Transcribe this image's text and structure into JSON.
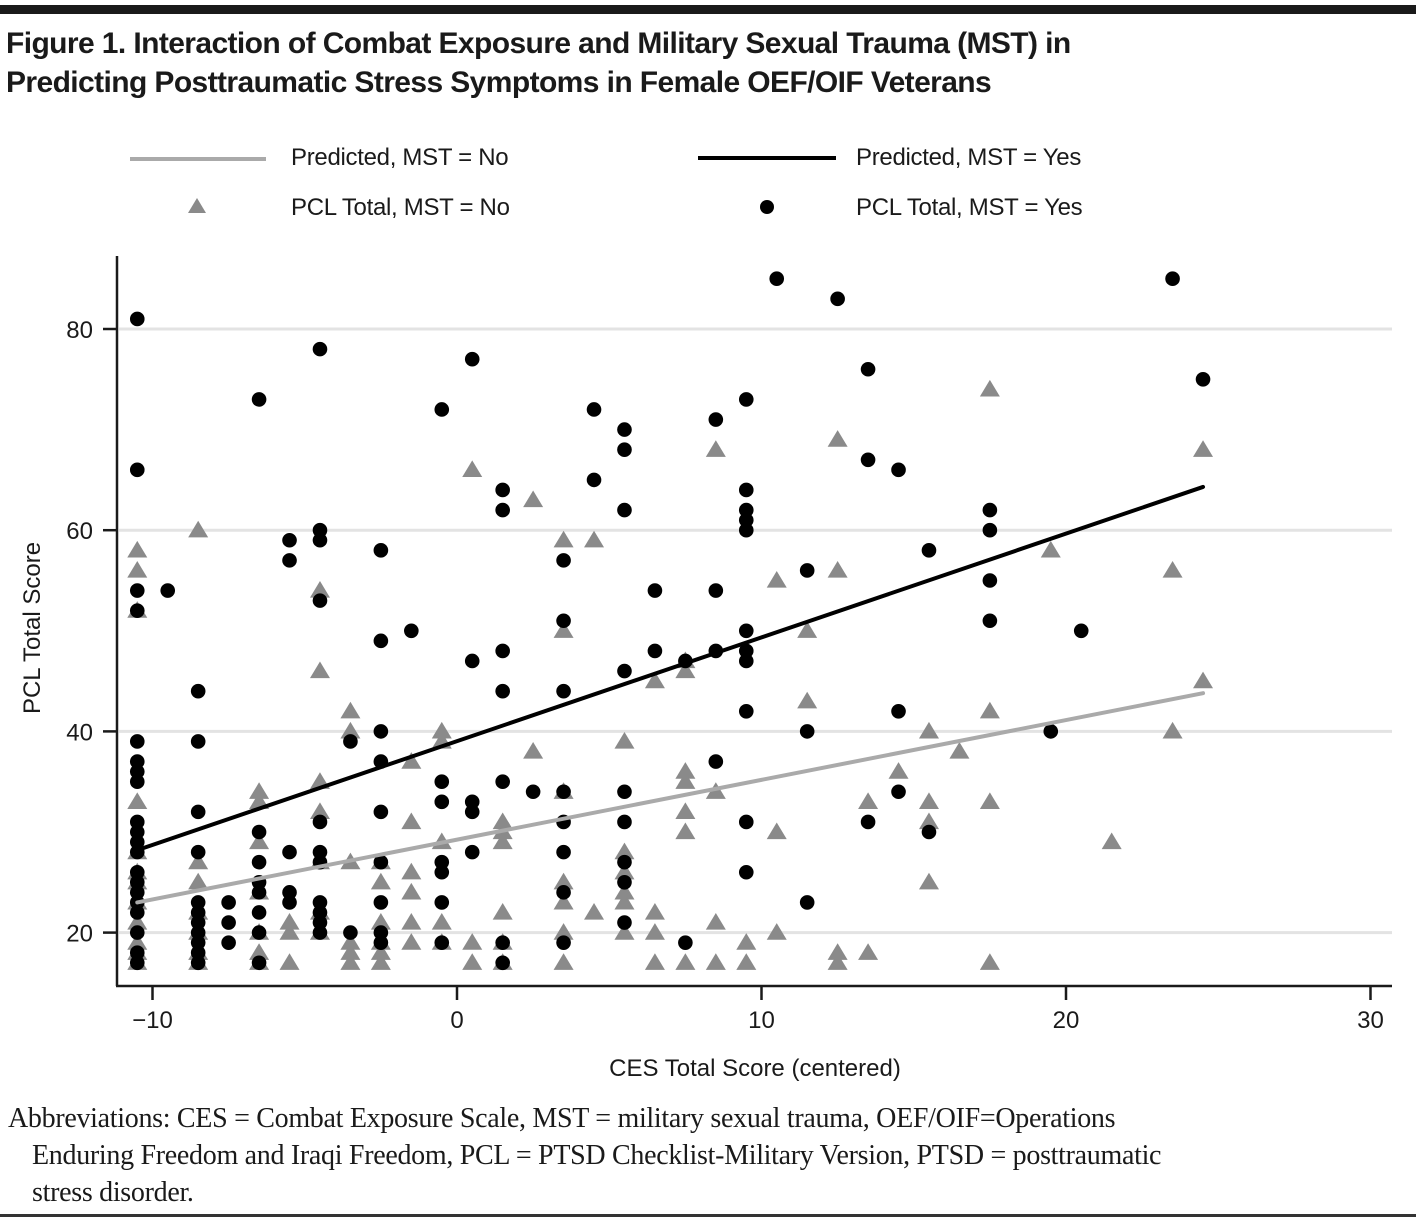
{
  "figure": {
    "title_line1": "Figure 1. Interaction of Combat Exposure and Military Sexual Trauma (MST) in",
    "title_line2": "Predicting Posttraumatic Stress Symptoms in Female OEF/OIF Veterans",
    "caption_line1": "Abbreviations: CES = Combat Exposure Scale, MST = military sexual trauma, OEF/OIF=Operations",
    "caption_line2": "Enduring Freedom and Iraqi Freedom, PCL = PTSD Checklist-Military Version, PTSD = posttraumatic",
    "caption_line3": "stress disorder."
  },
  "colors": {
    "mst_no": "#8a8a8a",
    "mst_no_line": "#aaaaaa",
    "mst_yes": "#000000",
    "grid": "#e3e3e3",
    "axis": "#1a1a1a"
  },
  "chart_data": {
    "type": "scatter",
    "title": "Interaction of Combat Exposure and Military Sexual Trauma (MST) in Predicting Posttraumatic Stress Symptoms in Female OEF/OIF Veterans",
    "xlabel": "CES Total Score (centered)",
    "ylabel": "PCL Total Score",
    "xlim": [
      -11,
      31
    ],
    "ylim": [
      15,
      87
    ],
    "xticks": [
      -10,
      0,
      10,
      20,
      30
    ],
    "xtick_labels": [
      "−10",
      "0",
      "10",
      "20",
      "30"
    ],
    "yticks": [
      20,
      40,
      60,
      80
    ],
    "ytick_labels": [
      "20",
      "40",
      "60",
      "80"
    ],
    "grid": "horizontal",
    "legend_position": "top",
    "legend": [
      {
        "label": "Predicted, MST = No",
        "kind": "line",
        "series": "predicted_no"
      },
      {
        "label": "Predicted, MST = Yes",
        "kind": "line",
        "series": "predicted_yes"
      },
      {
        "label": "PCL Total, MST = No",
        "kind": "triangle",
        "series": "observed_no"
      },
      {
        "label": "PCL Total, MST = Yes",
        "kind": "circle",
        "series": "observed_yes"
      }
    ],
    "series": [
      {
        "name": "Predicted, MST = No",
        "key": "predicted_no",
        "type": "line",
        "x": [
          -10.5,
          24.5
        ],
        "y": [
          23.0,
          43.8
        ]
      },
      {
        "name": "Predicted, MST = Yes",
        "key": "predicted_yes",
        "type": "line",
        "x": [
          -10.5,
          24.5
        ],
        "y": [
          28.2,
          64.3
        ]
      },
      {
        "name": "PCL Total, MST = No",
        "key": "observed_no",
        "type": "scatter",
        "marker": "triangle",
        "points": [
          [
            -10.5,
            58
          ],
          [
            -10.5,
            56
          ],
          [
            -10.5,
            52
          ],
          [
            -10.5,
            33
          ],
          [
            -10.5,
            28
          ],
          [
            -10.5,
            26
          ],
          [
            -10.5,
            25
          ],
          [
            -10.5,
            23
          ],
          [
            -10.5,
            21
          ],
          [
            -10.5,
            19
          ],
          [
            -10.5,
            18
          ],
          [
            -10.5,
            17
          ],
          [
            -8.5,
            60
          ],
          [
            -8.5,
            27
          ],
          [
            -8.5,
            25
          ],
          [
            -8.5,
            22
          ],
          [
            -8.5,
            20
          ],
          [
            -8.5,
            18
          ],
          [
            -8.5,
            17
          ],
          [
            -6.5,
            34
          ],
          [
            -6.5,
            33
          ],
          [
            -6.5,
            29
          ],
          [
            -6.5,
            24
          ],
          [
            -6.5,
            20
          ],
          [
            -6.5,
            18
          ],
          [
            -6.5,
            17
          ],
          [
            -5.5,
            21
          ],
          [
            -5.5,
            20
          ],
          [
            -5.5,
            17
          ],
          [
            -4.5,
            54
          ],
          [
            -4.5,
            46
          ],
          [
            -4.5,
            35
          ],
          [
            -4.5,
            32
          ],
          [
            -4.5,
            27
          ],
          [
            -4.5,
            22
          ],
          [
            -4.5,
            20
          ],
          [
            -3.5,
            42
          ],
          [
            -3.5,
            40
          ],
          [
            -3.5,
            27
          ],
          [
            -3.5,
            19
          ],
          [
            -3.5,
            18
          ],
          [
            -3.5,
            17
          ],
          [
            -2.5,
            27
          ],
          [
            -2.5,
            25
          ],
          [
            -2.5,
            21
          ],
          [
            -2.5,
            19
          ],
          [
            -2.5,
            18
          ],
          [
            -2.5,
            17
          ],
          [
            -1.5,
            37
          ],
          [
            -1.5,
            31
          ],
          [
            -1.5,
            26
          ],
          [
            -1.5,
            24
          ],
          [
            -1.5,
            21
          ],
          [
            -1.5,
            19
          ],
          [
            -0.5,
            40
          ],
          [
            -0.5,
            39
          ],
          [
            -0.5,
            29
          ],
          [
            -0.5,
            21
          ],
          [
            -0.5,
            19
          ],
          [
            0.5,
            66
          ],
          [
            0.5,
            19
          ],
          [
            0.5,
            17
          ],
          [
            1.5,
            31
          ],
          [
            1.5,
            30
          ],
          [
            1.5,
            29
          ],
          [
            1.5,
            22
          ],
          [
            1.5,
            19
          ],
          [
            1.5,
            17
          ],
          [
            2.5,
            63
          ],
          [
            2.5,
            38
          ],
          [
            3.5,
            59
          ],
          [
            3.5,
            50
          ],
          [
            3.5,
            34
          ],
          [
            3.5,
            25
          ],
          [
            3.5,
            23
          ],
          [
            3.5,
            20
          ],
          [
            3.5,
            17
          ],
          [
            4.5,
            59
          ],
          [
            4.5,
            22
          ],
          [
            5.5,
            39
          ],
          [
            5.5,
            28
          ],
          [
            5.5,
            26
          ],
          [
            5.5,
            24
          ],
          [
            5.5,
            23
          ],
          [
            5.5,
            20
          ],
          [
            6.5,
            45
          ],
          [
            6.5,
            22
          ],
          [
            6.5,
            20
          ],
          [
            6.5,
            17
          ],
          [
            7.5,
            47
          ],
          [
            7.5,
            46
          ],
          [
            7.5,
            36
          ],
          [
            7.5,
            35
          ],
          [
            7.5,
            32
          ],
          [
            7.5,
            30
          ],
          [
            7.5,
            17
          ],
          [
            8.5,
            68
          ],
          [
            8.5,
            34
          ],
          [
            8.5,
            21
          ],
          [
            8.5,
            17
          ],
          [
            9.5,
            19
          ],
          [
            9.5,
            17
          ],
          [
            10.5,
            55
          ],
          [
            10.5,
            30
          ],
          [
            10.5,
            20
          ],
          [
            11.5,
            50
          ],
          [
            11.5,
            43
          ],
          [
            12.5,
            69
          ],
          [
            12.5,
            56
          ],
          [
            12.5,
            18
          ],
          [
            12.5,
            17
          ],
          [
            13.5,
            33
          ],
          [
            13.5,
            18
          ],
          [
            14.5,
            36
          ],
          [
            15.5,
            40
          ],
          [
            15.5,
            33
          ],
          [
            15.5,
            31
          ],
          [
            15.5,
            25
          ],
          [
            16.5,
            38
          ],
          [
            17.5,
            74
          ],
          [
            17.5,
            42
          ],
          [
            17.5,
            33
          ],
          [
            17.5,
            17
          ],
          [
            19.5,
            58
          ],
          [
            21.5,
            29
          ],
          [
            23.5,
            56
          ],
          [
            23.5,
            40
          ],
          [
            24.5,
            68
          ],
          [
            24.5,
            45
          ]
        ]
      },
      {
        "name": "PCL Total, MST = Yes",
        "key": "observed_yes",
        "type": "scatter",
        "marker": "circle",
        "points": [
          [
            -10.5,
            81
          ],
          [
            -10.5,
            66
          ],
          [
            -10.5,
            54
          ],
          [
            -10.5,
            52
          ],
          [
            -10.5,
            39
          ],
          [
            -10.5,
            37
          ],
          [
            -10.5,
            36
          ],
          [
            -10.5,
            35
          ],
          [
            -10.5,
            31
          ],
          [
            -10.5,
            30
          ],
          [
            -10.5,
            29
          ],
          [
            -10.5,
            28
          ],
          [
            -10.5,
            26
          ],
          [
            -10.5,
            25
          ],
          [
            -10.5,
            24
          ],
          [
            -10.5,
            23
          ],
          [
            -10.5,
            22
          ],
          [
            -10.5,
            20
          ],
          [
            -10.5,
            18
          ],
          [
            -10.5,
            17
          ],
          [
            -9.5,
            54
          ],
          [
            -8.5,
            44
          ],
          [
            -8.5,
            39
          ],
          [
            -8.5,
            32
          ],
          [
            -8.5,
            28
          ],
          [
            -8.5,
            23
          ],
          [
            -8.5,
            22
          ],
          [
            -8.5,
            21
          ],
          [
            -8.5,
            20
          ],
          [
            -8.5,
            19
          ],
          [
            -8.5,
            18
          ],
          [
            -8.5,
            17
          ],
          [
            -7.5,
            23
          ],
          [
            -7.5,
            21
          ],
          [
            -7.5,
            19
          ],
          [
            -6.5,
            73
          ],
          [
            -6.5,
            30
          ],
          [
            -6.5,
            27
          ],
          [
            -6.5,
            25
          ],
          [
            -6.5,
            24
          ],
          [
            -6.5,
            22
          ],
          [
            -6.5,
            20
          ],
          [
            -6.5,
            17
          ],
          [
            -5.5,
            59
          ],
          [
            -5.5,
            57
          ],
          [
            -5.5,
            28
          ],
          [
            -5.5,
            24
          ],
          [
            -5.5,
            23
          ],
          [
            -4.5,
            78
          ],
          [
            -4.5,
            60
          ],
          [
            -4.5,
            59
          ],
          [
            -4.5,
            53
          ],
          [
            -4.5,
            31
          ],
          [
            -4.5,
            28
          ],
          [
            -4.5,
            27
          ],
          [
            -4.5,
            23
          ],
          [
            -4.5,
            22
          ],
          [
            -4.5,
            21
          ],
          [
            -4.5,
            20
          ],
          [
            -3.5,
            39
          ],
          [
            -3.5,
            20
          ],
          [
            -2.5,
            58
          ],
          [
            -2.5,
            49
          ],
          [
            -2.5,
            40
          ],
          [
            -2.5,
            37
          ],
          [
            -2.5,
            32
          ],
          [
            -2.5,
            27
          ],
          [
            -2.5,
            23
          ],
          [
            -2.5,
            20
          ],
          [
            -2.5,
            19
          ],
          [
            -1.5,
            50
          ],
          [
            -0.5,
            72
          ],
          [
            -0.5,
            35
          ],
          [
            -0.5,
            33
          ],
          [
            -0.5,
            27
          ],
          [
            -0.5,
            26
          ],
          [
            -0.5,
            23
          ],
          [
            -0.5,
            19
          ],
          [
            0.5,
            77
          ],
          [
            0.5,
            47
          ],
          [
            0.5,
            33
          ],
          [
            0.5,
            32
          ],
          [
            0.5,
            28
          ],
          [
            1.5,
            64
          ],
          [
            1.5,
            62
          ],
          [
            1.5,
            48
          ],
          [
            1.5,
            44
          ],
          [
            1.5,
            35
          ],
          [
            1.5,
            19
          ],
          [
            1.5,
            17
          ],
          [
            2.5,
            34
          ],
          [
            3.5,
            57
          ],
          [
            3.5,
            51
          ],
          [
            3.5,
            44
          ],
          [
            3.5,
            34
          ],
          [
            3.5,
            31
          ],
          [
            3.5,
            28
          ],
          [
            3.5,
            24
          ],
          [
            3.5,
            19
          ],
          [
            4.5,
            72
          ],
          [
            4.5,
            65
          ],
          [
            5.5,
            70
          ],
          [
            5.5,
            68
          ],
          [
            5.5,
            62
          ],
          [
            5.5,
            46
          ],
          [
            5.5,
            34
          ],
          [
            5.5,
            31
          ],
          [
            5.5,
            27
          ],
          [
            5.5,
            25
          ],
          [
            5.5,
            21
          ],
          [
            6.5,
            54
          ],
          [
            6.5,
            48
          ],
          [
            7.5,
            47
          ],
          [
            7.5,
            19
          ],
          [
            8.5,
            71
          ],
          [
            8.5,
            54
          ],
          [
            8.5,
            48
          ],
          [
            8.5,
            37
          ],
          [
            9.5,
            73
          ],
          [
            9.5,
            64
          ],
          [
            9.5,
            62
          ],
          [
            9.5,
            61
          ],
          [
            9.5,
            60
          ],
          [
            9.5,
            50
          ],
          [
            9.5,
            48
          ],
          [
            9.5,
            47
          ],
          [
            9.5,
            42
          ],
          [
            9.5,
            31
          ],
          [
            9.5,
            26
          ],
          [
            10.5,
            85
          ],
          [
            11.5,
            56
          ],
          [
            11.5,
            40
          ],
          [
            11.5,
            23
          ],
          [
            12.5,
            83
          ],
          [
            13.5,
            76
          ],
          [
            13.5,
            67
          ],
          [
            13.5,
            31
          ],
          [
            14.5,
            66
          ],
          [
            14.5,
            42
          ],
          [
            14.5,
            34
          ],
          [
            15.5,
            58
          ],
          [
            15.5,
            30
          ],
          [
            17.5,
            62
          ],
          [
            17.5,
            60
          ],
          [
            17.5,
            55
          ],
          [
            17.5,
            51
          ],
          [
            19.5,
            40
          ],
          [
            20.5,
            50
          ],
          [
            23.5,
            85
          ],
          [
            24.5,
            75
          ]
        ]
      }
    ]
  }
}
